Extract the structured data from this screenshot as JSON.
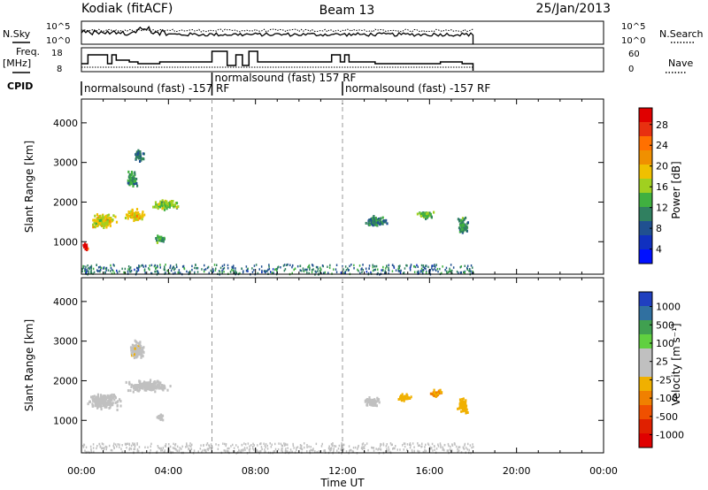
{
  "header": {
    "station": "Kodiak (fitACF)",
    "beam": "Beam 13",
    "date": "25/Jan/2013"
  },
  "side_labels": {
    "nsky": "N.Sky",
    "freq": "Freq.",
    "mhz": "[MHz]",
    "cpid": "CPID",
    "nsearch": "N.Search",
    "nave": "Nave"
  },
  "noise_panel": {
    "left_ticks": [
      "10^5",
      "10^0"
    ],
    "right_ticks": [
      "10^5",
      "10^0"
    ]
  },
  "freq_panel": {
    "left_ticks": [
      "18",
      "8"
    ],
    "right_ticks": [
      "60",
      "0"
    ]
  },
  "cpid_segments": [
    {
      "label": "normalsound (fast) -157 RF",
      "start": 0,
      "end": 6
    },
    {
      "label": "normalsound (fast) 157 RF",
      "start": 6,
      "end": 12
    },
    {
      "label": "normalsound (fast) -157 RF",
      "start": 12,
      "end": 18
    }
  ],
  "axes": {
    "xlabel": "Time UT",
    "x_ticks": [
      "00:00",
      "04:00",
      "08:00",
      "12:00",
      "16:00",
      "20:00",
      "00:00"
    ],
    "xlim": [
      0,
      24
    ],
    "ylabel": "Slant Range [km]",
    "y_ticks": [
      1000,
      2000,
      3000,
      4000
    ],
    "ylim": [
      180,
      4600
    ]
  },
  "power_colorbar": {
    "label": "Power [dB]",
    "ticks": [
      "28",
      "24",
      "20",
      "16",
      "12",
      "8",
      "4"
    ],
    "colors": [
      "#e00000",
      "#e83010",
      "#ff7000",
      "#f09000",
      "#f0c000",
      "#a0d020",
      "#40b040",
      "#308060",
      "#205090",
      "#1030c0",
      "#0010ff"
    ]
  },
  "velocity_colorbar": {
    "label": "Velocity [m s⁻¹]",
    "ticks": [
      "1000",
      "500",
      "100",
      "25",
      "-25",
      "-100",
      "-500",
      "-1000"
    ],
    "colors": [
      "#2040c0",
      "#3070a0",
      "#40a050",
      "#60d040",
      "#c0c0c0",
      "#c0c0c0",
      "#f0b000",
      "#f08000",
      "#f05000",
      "#e02000",
      "#e00000"
    ]
  },
  "chart_data": [
    {
      "type": "heatmap",
      "name": "Power",
      "x_unit": "hours UT",
      "y_unit": "km",
      "value_range": [
        0,
        30
      ],
      "clusters": [
        {
          "t": 0.15,
          "r": 900,
          "dt": 0.25,
          "dr": 220,
          "v": 29
        },
        {
          "t": 1.0,
          "r": 1550,
          "dt": 1.2,
          "dr": 350,
          "v": 17
        },
        {
          "t": 2.4,
          "r": 1700,
          "dt": 1.0,
          "dr": 280,
          "v": 18
        },
        {
          "t": 3.8,
          "r": 1950,
          "dt": 1.1,
          "dr": 250,
          "v": 14
        },
        {
          "t": 3.6,
          "r": 1100,
          "dt": 0.5,
          "dr": 180,
          "v": 11
        },
        {
          "t": 2.3,
          "r": 2600,
          "dt": 0.5,
          "dr": 400,
          "v": 10
        },
        {
          "t": 2.6,
          "r": 3200,
          "dt": 0.5,
          "dr": 300,
          "v": 9
        },
        {
          "t": 13.5,
          "r": 1550,
          "dt": 1.0,
          "dr": 250,
          "v": 9
        },
        {
          "t": 15.8,
          "r": 1700,
          "dt": 0.8,
          "dr": 200,
          "v": 12
        },
        {
          "t": 17.5,
          "r": 1400,
          "dt": 0.5,
          "dr": 450,
          "v": 10
        }
      ]
    },
    {
      "type": "heatmap",
      "name": "Velocity",
      "x_unit": "hours UT",
      "y_unit": "km",
      "value_range": [
        -1000,
        1000
      ],
      "clusters": [
        {
          "t": 1.0,
          "r": 1500,
          "dt": 1.5,
          "dr": 400,
          "v": 0
        },
        {
          "t": 3.0,
          "r": 1900,
          "dt": 2.0,
          "dr": 300,
          "v": 0
        },
        {
          "t": 2.5,
          "r": 2800,
          "dt": 0.7,
          "dr": 500,
          "v": -80
        },
        {
          "t": 3.6,
          "r": 1100,
          "dt": 0.4,
          "dr": 180,
          "v": -60
        },
        {
          "t": 13.3,
          "r": 1500,
          "dt": 0.8,
          "dr": 250,
          "v": 60
        },
        {
          "t": 14.8,
          "r": 1600,
          "dt": 0.7,
          "dr": 180,
          "v": -200
        },
        {
          "t": 16.3,
          "r": 1700,
          "dt": 0.6,
          "dr": 180,
          "v": -300
        },
        {
          "t": 17.5,
          "r": 1400,
          "dt": 0.5,
          "dr": 400,
          "v": -150
        }
      ]
    }
  ]
}
